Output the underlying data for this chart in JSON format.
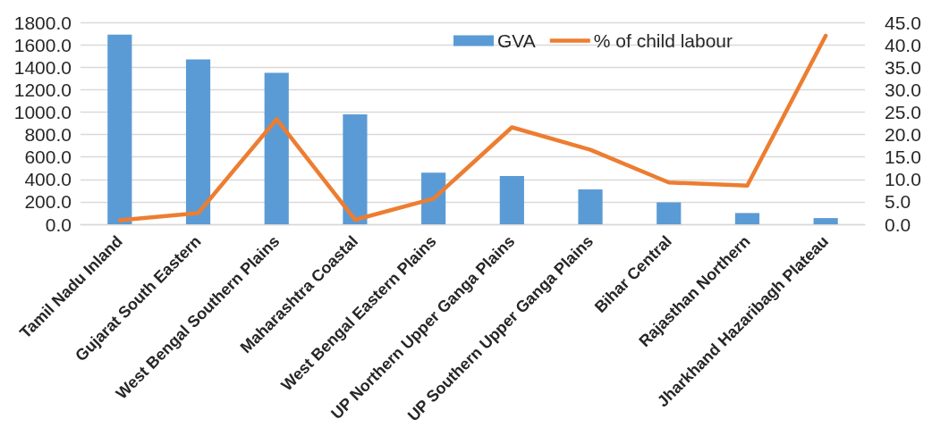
{
  "chart_data": {
    "type": "bar",
    "categories": [
      "Tamil Nadu Inland",
      "Gujarat South Eastern",
      "West Bengal Southern Plains",
      "Maharashtra Coastal",
      "West Bengal Eastern Plains",
      "UP Northern Upper Ganga Plains",
      "UP Southern Upper Ganga Plains",
      "Bihar Central",
      "Rajasthan Northern",
      "Jharkhand Hazaribagh Plateau"
    ],
    "series": [
      {
        "name": "GVA",
        "color": "#5b9bd5",
        "values": [
          1690,
          1470,
          1350,
          980,
          460,
          430,
          310,
          195,
          100,
          55
        ]
      },
      {
        "name": "% of child labour",
        "type": "line",
        "axis": "y2",
        "color": "#ed7d31",
        "values": [
          0.9,
          2.5,
          23.4,
          1.0,
          5.7,
          21.6,
          16.6,
          9.3,
          8.6,
          42.0
        ]
      }
    ],
    "ylim": [
      0,
      1800
    ],
    "yticks": [
      {
        "value": 0,
        "label": "0.0"
      },
      {
        "value": 200,
        "label": "200.0"
      },
      {
        "value": 400,
        "label": "400.0"
      },
      {
        "value": 600,
        "label": "600.0"
      },
      {
        "value": 800,
        "label": "800.0"
      },
      {
        "value": 1000,
        "label": "1000.0"
      },
      {
        "value": 1200,
        "label": "1200.0"
      },
      {
        "value": 1400,
        "label": "1400.0"
      },
      {
        "value": 1600,
        "label": "1600.0"
      },
      {
        "value": 1800,
        "label": "1800.0"
      }
    ],
    "y2lim": [
      0,
      45
    ],
    "y2ticks": [
      {
        "value": 0,
        "label": "0.0"
      },
      {
        "value": 5,
        "label": "5.0"
      },
      {
        "value": 10,
        "label": "10.0"
      },
      {
        "value": 15,
        "label": "15.0"
      },
      {
        "value": 20,
        "label": "20.0"
      },
      {
        "value": 25,
        "label": "25.0"
      },
      {
        "value": 30,
        "label": "30.0"
      },
      {
        "value": 35,
        "label": "35.0"
      },
      {
        "value": 40,
        "label": "40.0"
      },
      {
        "value": 45,
        "label": "45.0"
      }
    ],
    "grid": "y",
    "legend": "top right",
    "marker": "none",
    "line_style": "solid"
  }
}
